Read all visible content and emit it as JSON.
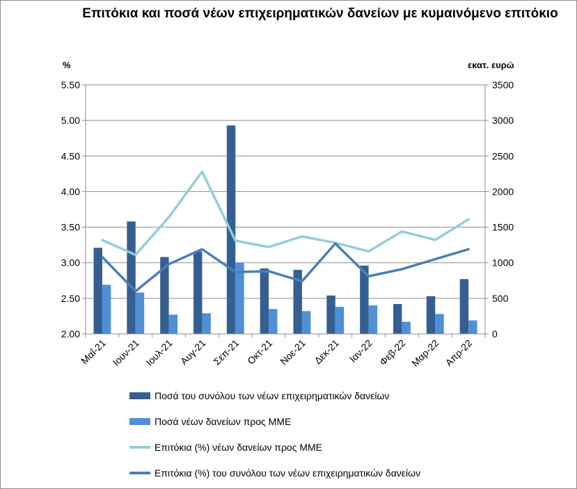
{
  "title": "Επιτόκια και ποσά νέων επιχειρηματικών δανείων με κυμαινόμενο επιτόκιο",
  "left_unit": "%",
  "right_unit": "εκατ. ευρώ",
  "colors": {
    "total_bars": "#365f91",
    "sme_bars": "#4f8fd6",
    "sme_rate_line": "#92cddc",
    "total_rate_line": "#4a7eb8",
    "grid": "#8c8c8c"
  },
  "chart_data": {
    "type": "bar",
    "categories": [
      "Μαΐ-21",
      "Ιουν-21",
      "Ιουλ-21",
      "Αυγ-21",
      "Σεπ-21",
      "Οκτ-21",
      "Νοε-21",
      "Δεκ-21",
      "Ιαν-22",
      "Φεβ-22",
      "Μαρ-22",
      "Απρ-22"
    ],
    "y_left": {
      "label": "%",
      "lim": [
        2.0,
        5.5
      ],
      "ticks": [
        "2.00",
        "2.50",
        "3.00",
        "3.50",
        "4.00",
        "4.50",
        "5.00",
        "5.50"
      ]
    },
    "y_right": {
      "label": "εκατ. ευρώ",
      "lim": [
        0,
        3500
      ],
      "ticks": [
        "0",
        "500",
        "1000",
        "1500",
        "2000",
        "2500",
        "3000",
        "3500"
      ]
    },
    "grid": true,
    "legend_position": "bottom",
    "series": [
      {
        "name": "Ποσά του συνόλου των νέων επιχειρηματικών δανείων",
        "kind": "bar",
        "axis": "right",
        "values": [
          1210,
          1580,
          1080,
          1160,
          2930,
          920,
          900,
          540,
          960,
          420,
          530,
          770
        ]
      },
      {
        "name": "Ποσά νέων δανείων προς ΜΜΕ",
        "kind": "bar",
        "axis": "right",
        "values": [
          690,
          580,
          270,
          290,
          1000,
          350,
          320,
          380,
          400,
          170,
          280,
          190
        ]
      },
      {
        "name": "Επιτόκια (%) νέων δανείων προς ΜΜΕ",
        "kind": "line",
        "axis": "left",
        "values": [
          3.32,
          3.11,
          3.64,
          4.28,
          3.31,
          3.22,
          3.37,
          3.28,
          3.16,
          3.44,
          3.32,
          3.61
        ]
      },
      {
        "name": "Επιτόκια (%) του συνόλου των νέων επιχειρηματικών δανείων",
        "kind": "line",
        "axis": "left",
        "values": [
          3.08,
          2.6,
          2.98,
          3.19,
          2.87,
          2.88,
          2.74,
          3.27,
          2.81,
          2.91,
          3.05,
          3.19
        ]
      }
    ]
  }
}
